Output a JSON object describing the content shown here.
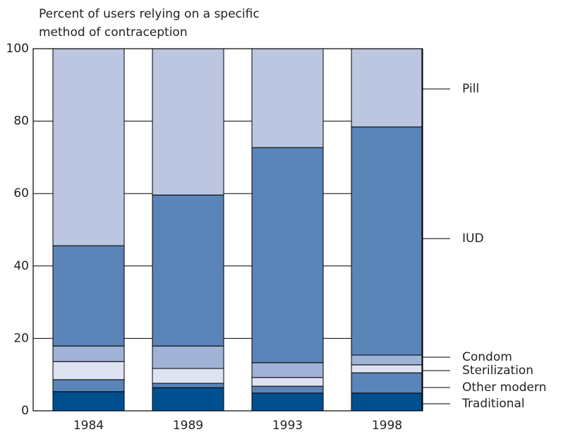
{
  "chart_data": {
    "type": "stacked_bar",
    "title": [
      "Percent of users relying on a specific",
      "method of contraception"
    ],
    "categories": [
      "1984",
      "1989",
      "1993",
      "1998"
    ],
    "series": [
      {
        "name": "Traditional",
        "color": "#004f8f",
        "values": [
          5.3,
          6.4,
          4.9,
          4.9
        ]
      },
      {
        "name": "Other modern",
        "color": "#5b84b8",
        "values": [
          3.3,
          1.2,
          1.9,
          5.6
        ]
      },
      {
        "name": "Sterilization",
        "color": "#dde3f0",
        "values": [
          5.0,
          4.1,
          2.4,
          2.2
        ]
      },
      {
        "name": "Condom",
        "color": "#a0b2d6",
        "values": [
          4.3,
          6.2,
          4.1,
          2.7
        ]
      },
      {
        "name": "IUD",
        "color": "#5b84b8",
        "values": [
          27.7,
          41.7,
          59.4,
          63.0
        ]
      },
      {
        "name": "Pill",
        "color": "#bcc6e0",
        "values": [
          54.4,
          40.4,
          27.3,
          21.6
        ]
      }
    ],
    "ylim": [
      0,
      100
    ],
    "yticks": [
      0,
      20,
      40,
      60,
      80,
      100
    ],
    "grid": true,
    "legend": "right"
  }
}
